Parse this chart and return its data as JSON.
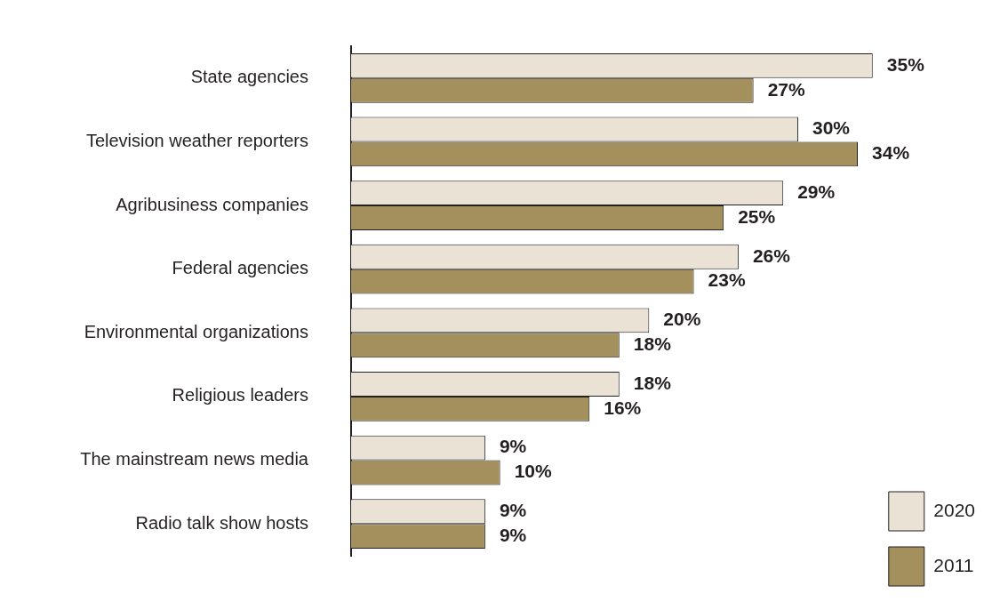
{
  "chart_data": {
    "type": "bar",
    "orientation": "horizontal",
    "categories": [
      "State agencies",
      "Television weather reporters",
      "Agribusiness companies",
      "Federal agencies",
      "Environmental organizations",
      "Religious leaders",
      "The mainstream news media",
      "Radio talk show hosts"
    ],
    "series": [
      {
        "name": "2020",
        "color": "#ebe2d6",
        "values": [
          35,
          30,
          29,
          26,
          20,
          18,
          9,
          9
        ],
        "value_labels": [
          "35%",
          "30%",
          "29%",
          "26%",
          "20%",
          "18%",
          "9%",
          "9%"
        ]
      },
      {
        "name": "2011",
        "color": "#a3905d",
        "values": [
          27,
          34,
          25,
          23,
          18,
          16,
          10,
          9
        ],
        "value_labels": [
          "27%",
          "34%",
          "25%",
          "23%",
          "18%",
          "16%",
          "10%",
          "9%"
        ]
      }
    ],
    "grid": false,
    "legend": "bottom right",
    "tick_labels": "y"
  }
}
